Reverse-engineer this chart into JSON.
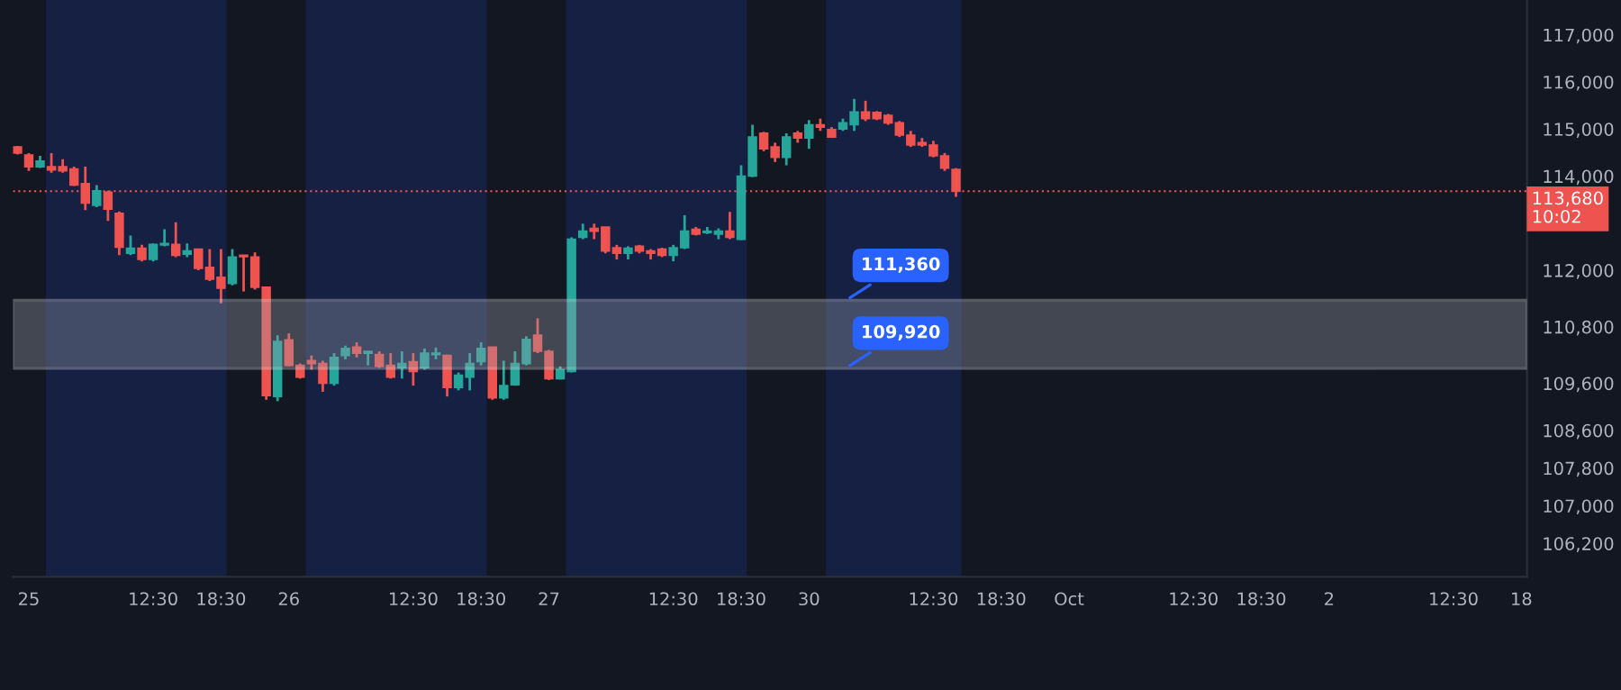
{
  "chart_data": {
    "type": "candlestick",
    "categories": [
      null,
      "25",
      null,
      null,
      null,
      null,
      null,
      null,
      null,
      null,
      null,
      null,
      "12:30",
      null,
      null,
      null,
      null,
      null,
      "18:30",
      null,
      null,
      null,
      null,
      null,
      "26",
      null,
      null,
      null,
      null,
      null,
      null,
      null,
      null,
      null,
      null,
      "12:30",
      null,
      null,
      null,
      null,
      null,
      "18:30",
      null,
      null,
      null,
      null,
      null,
      "27",
      null,
      null,
      null,
      null,
      null,
      null,
      null,
      null,
      null,
      null,
      "12:30",
      null,
      null,
      null,
      null,
      null,
      "18:30",
      null,
      null,
      null,
      null,
      null,
      "30",
      null,
      null,
      null,
      null,
      null,
      null,
      null,
      null,
      null,
      null,
      "12:30",
      null,
      null,
      null,
      null,
      null,
      "18:30",
      null,
      null,
      null,
      null,
      null,
      "Oct",
      null,
      null,
      null,
      null,
      null,
      null,
      null,
      null,
      null,
      null,
      "12:30",
      null,
      null,
      null,
      null,
      null,
      "18:30",
      null,
      null,
      null,
      null,
      null,
      "2",
      null,
      null,
      null,
      null,
      null,
      null,
      null,
      null,
      null,
      null,
      "12:30",
      null,
      null,
      null,
      null,
      null,
      "18"
    ],
    "ohlc": [
      [
        114620,
        114640,
        114460,
        114490
      ],
      [
        114450,
        114490,
        114110,
        114200
      ],
      [
        114200,
        114430,
        114170,
        114320
      ],
      [
        114200,
        114490,
        114070,
        114130
      ],
      [
        114200,
        114360,
        114070,
        114110
      ],
      [
        114150,
        114200,
        113790,
        113810
      ],
      [
        113840,
        114200,
        113280,
        113430
      ],
      [
        113380,
        113810,
        113340,
        113690
      ],
      [
        113660,
        113690,
        113050,
        113300
      ],
      [
        113210,
        113250,
        112320,
        112490
      ],
      [
        112360,
        112740,
        112320,
        112470
      ],
      [
        112470,
        112540,
        112190,
        112230
      ],
      [
        112230,
        112570,
        112190,
        112550
      ],
      [
        112540,
        112870,
        112510,
        112570
      ],
      [
        112550,
        113020,
        112280,
        112320
      ],
      [
        112340,
        112570,
        112280,
        112410
      ],
      [
        112450,
        112450,
        112000,
        112040
      ],
      [
        112060,
        112450,
        111770,
        111810
      ],
      [
        111850,
        112450,
        111300,
        111620
      ],
      [
        111720,
        112450,
        111680,
        112280
      ],
      [
        112320,
        112320,
        111550,
        112290
      ],
      [
        112280,
        112380,
        111590,
        111640
      ],
      [
        111640,
        111640,
        109250,
        109340
      ],
      [
        109320,
        110620,
        109220,
        110490
      ],
      [
        110520,
        110660,
        109960,
        109980
      ],
      [
        109980,
        110020,
        109700,
        109730
      ],
      [
        110080,
        110190,
        109890,
        110020
      ],
      [
        110020,
        110080,
        109420,
        109600
      ],
      [
        109600,
        110240,
        109550,
        110150
      ],
      [
        110190,
        110400,
        110110,
        110340
      ],
      [
        110370,
        110470,
        110150,
        110240
      ],
      [
        110240,
        110280,
        109980,
        110280
      ],
      [
        110210,
        110280,
        109930,
        109960
      ],
      [
        109980,
        110240,
        109700,
        109730
      ],
      [
        109930,
        110280,
        109700,
        110020
      ],
      [
        110060,
        110240,
        109550,
        109850
      ],
      [
        109930,
        110340,
        109890,
        110240
      ],
      [
        110210,
        110360,
        110110,
        110240
      ],
      [
        110190,
        110210,
        109320,
        109510
      ],
      [
        109510,
        109830,
        109450,
        109770
      ],
      [
        109730,
        110240,
        109450,
        110020
      ],
      [
        110060,
        110470,
        109980,
        110340
      ],
      [
        110370,
        110370,
        109250,
        109290
      ],
      [
        109290,
        110080,
        109250,
        109550
      ],
      [
        109570,
        110280,
        109550,
        110020
      ],
      [
        110020,
        110600,
        109980,
        110530
      ],
      [
        110620,
        110980,
        110240,
        110280
      ],
      [
        110280,
        110310,
        109670,
        109700
      ],
      [
        109700,
        109960,
        109680,
        109890
      ],
      [
        109850,
        112700,
        109830,
        112660
      ],
      [
        112700,
        112990,
        112660,
        112830
      ],
      [
        112890,
        112990,
        112660,
        112830
      ],
      [
        112920,
        112920,
        112360,
        112410
      ],
      [
        112480,
        112540,
        112230,
        112360
      ],
      [
        112360,
        112510,
        112230,
        112470
      ],
      [
        112510,
        112540,
        112360,
        112410
      ],
      [
        112410,
        112450,
        112230,
        112360
      ],
      [
        112450,
        112480,
        112280,
        112320
      ],
      [
        112320,
        112540,
        112190,
        112480
      ],
      [
        112480,
        113170,
        112450,
        112830
      ],
      [
        112870,
        112920,
        112740,
        112770
      ],
      [
        112800,
        112920,
        112770,
        112830
      ],
      [
        112770,
        112890,
        112660,
        112830
      ],
      [
        112830,
        113240,
        112660,
        112700
      ],
      [
        112660,
        114230,
        112640,
        114000
      ],
      [
        114000,
        115090,
        113980,
        114830
      ],
      [
        114910,
        114940,
        114530,
        114580
      ],
      [
        114620,
        114710,
        114300,
        114400
      ],
      [
        114400,
        114910,
        114230,
        114830
      ],
      [
        114910,
        114960,
        114710,
        114810
      ],
      [
        114810,
        115190,
        114580,
        115090
      ],
      [
        115090,
        115220,
        114960,
        115040
      ],
      [
        114990,
        115040,
        114810,
        114830
      ],
      [
        115000,
        115220,
        114960,
        115130
      ],
      [
        115090,
        115640,
        114960,
        115360
      ],
      [
        115360,
        115600,
        115170,
        115220
      ],
      [
        115350,
        115380,
        115190,
        115220
      ],
      [
        115290,
        115320,
        115090,
        115130
      ],
      [
        115130,
        115170,
        114830,
        114870
      ],
      [
        114870,
        114960,
        114620,
        114660
      ],
      [
        114710,
        114810,
        114620,
        114660
      ],
      [
        114660,
        114750,
        114400,
        114430
      ],
      [
        114430,
        114490,
        114110,
        114170
      ],
      [
        114140,
        114170,
        113560,
        113680
      ],
      null,
      null,
      null,
      null,
      null,
      null,
      null,
      null,
      null,
      null,
      null,
      null,
      null,
      null,
      null,
      null,
      null,
      null,
      null,
      null,
      null,
      null,
      null,
      null,
      null,
      null,
      null,
      null,
      null,
      null,
      null,
      null,
      null,
      null,
      null,
      null,
      null,
      null,
      null,
      null,
      null,
      null,
      null,
      null,
      null,
      null,
      null,
      null,
      null,
      null
    ],
    "colors": [
      "#ef5350",
      "#ef5350",
      "#26a69a",
      "#ef5350",
      "#ef5350",
      "#ef5350",
      "#ef5350",
      "#26a69a",
      "#ef5350",
      "#ef5350",
      "#26a69a",
      "#ef5350",
      "#26a69a",
      "#26a69a",
      "#ef5350",
      "#26a69a",
      "#ef5350",
      "#ef5350",
      "#ef5350",
      "#26a69a",
      "#ef5350",
      "#ef5350",
      "#ef5350",
      "#26a69a",
      "#ef5350",
      "#ef5350",
      "#ef5350",
      "#ef5350",
      "#26a69a",
      "#26a69a",
      "#ef5350",
      "#26a69a",
      "#ef5350",
      "#ef5350",
      "#26a69a",
      "#ef5350",
      "#26a69a",
      "#26a69a",
      "#ef5350",
      "#26a69a",
      "#26a69a",
      "#26a69a",
      "#ef5350",
      "#26a69a",
      "#26a69a",
      "#26a69a",
      "#ef5350",
      "#ef5350",
      "#26a69a",
      "#26a69a",
      "#26a69a",
      "#ef5350",
      "#ef5350",
      "#ef5350",
      "#26a69a",
      "#ef5350",
      "#ef5350",
      "#ef5350",
      "#26a69a",
      "#26a69a",
      "#ef5350",
      "#26a69a",
      "#26a69a",
      "#ef5350",
      "#26a69a",
      "#26a69a",
      "#ef5350",
      "#ef5350",
      "#26a69a",
      "#ef5350",
      "#26a69a",
      "#ef5350",
      "#ef5350",
      "#26a69a",
      "#26a69a",
      "#ef5350",
      "#ef5350",
      "#ef5350",
      "#ef5350",
      "#ef5350",
      "#ef5350",
      "#ef5350",
      "#ef5350",
      "#ef5350",
      null,
      null,
      null,
      null,
      null,
      null,
      null,
      null,
      null,
      null,
      null,
      null,
      null,
      null,
      null,
      null,
      null,
      null,
      null,
      null,
      null,
      null,
      null,
      null,
      null,
      null,
      null,
      null,
      null,
      null,
      null,
      null,
      null,
      null,
      null,
      null,
      null,
      null,
      null,
      null,
      null,
      null,
      null,
      null,
      null,
      null,
      null,
      null,
      null,
      null
    ],
    "ylim": [
      105490,
      117740
    ],
    "yticks": [
      {
        "value": 106200,
        "label": "106,200"
      },
      {
        "value": 107000,
        "label": "107,000"
      },
      {
        "value": 107800,
        "label": "107,800"
      },
      {
        "value": 108600,
        "label": "108,600"
      },
      {
        "value": 109600,
        "label": "109,600"
      },
      {
        "value": 110800,
        "label": "110,800"
      },
      {
        "value": 112000,
        "label": "112,000"
      },
      {
        "value": 114000,
        "label": "114,000"
      },
      {
        "value": 115000,
        "label": "115,000"
      },
      {
        "value": 116000,
        "label": "116,000"
      },
      {
        "value": 117000,
        "label": "117,000"
      }
    ],
    "ref_lines": [
      {
        "axis": "y",
        "value": 113680,
        "label": "113,680\n10:02",
        "color": "#ef5350",
        "line_style": "dotted"
      }
    ],
    "bands": [
      {
        "axis": "y",
        "from": 109920,
        "to": 111360,
        "color": "#9aa0ad"
      }
    ],
    "annotations": [
      {
        "text": "111,360",
        "y": 111360
      },
      {
        "text": "109,920",
        "y": 109920
      }
    ],
    "grid": false,
    "legend": false
  }
}
